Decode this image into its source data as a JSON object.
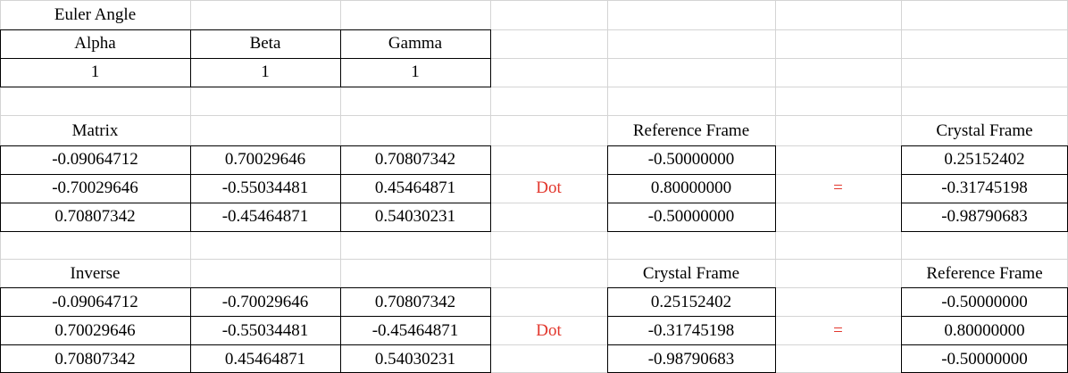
{
  "euler": {
    "title": "Euler Angle",
    "headers": [
      "Alpha",
      "Beta",
      "Gamma"
    ],
    "values": [
      "1",
      "1",
      "1"
    ]
  },
  "matrix": {
    "label": "Matrix",
    "rows": [
      [
        "-0.09064712",
        "0.70029646",
        "0.70807342"
      ],
      [
        "-0.70029646",
        "-0.55034481",
        "0.45464871"
      ],
      [
        "0.70807342",
        "-0.45464871",
        "0.54030231"
      ]
    ]
  },
  "op1": {
    "dot": "Dot",
    "equals": "=",
    "in_label": "Reference Frame",
    "in_values": [
      "-0.50000000",
      "0.80000000",
      "-0.50000000"
    ],
    "out_label": "Crystal Frame",
    "out_values": [
      "0.25152402",
      "-0.31745198",
      "-0.98790683"
    ]
  },
  "inverse": {
    "label": "Inverse",
    "rows": [
      [
        "-0.09064712",
        "-0.70029646",
        "0.70807342"
      ],
      [
        "0.70029646",
        "-0.55034481",
        "-0.45464871"
      ],
      [
        "0.70807342",
        "0.45464871",
        "0.54030231"
      ]
    ]
  },
  "op2": {
    "dot": "Dot",
    "equals": "=",
    "in_label": "Crystal Frame",
    "in_values": [
      "0.25152402",
      "-0.31745198",
      "-0.98790683"
    ],
    "out_label": "Reference Frame",
    "out_values": [
      "-0.50000000",
      "0.80000000",
      "-0.50000000"
    ]
  },
  "colors": {
    "operator": "#e2372d",
    "grid": "#d4d4d4",
    "border": "#000000"
  }
}
